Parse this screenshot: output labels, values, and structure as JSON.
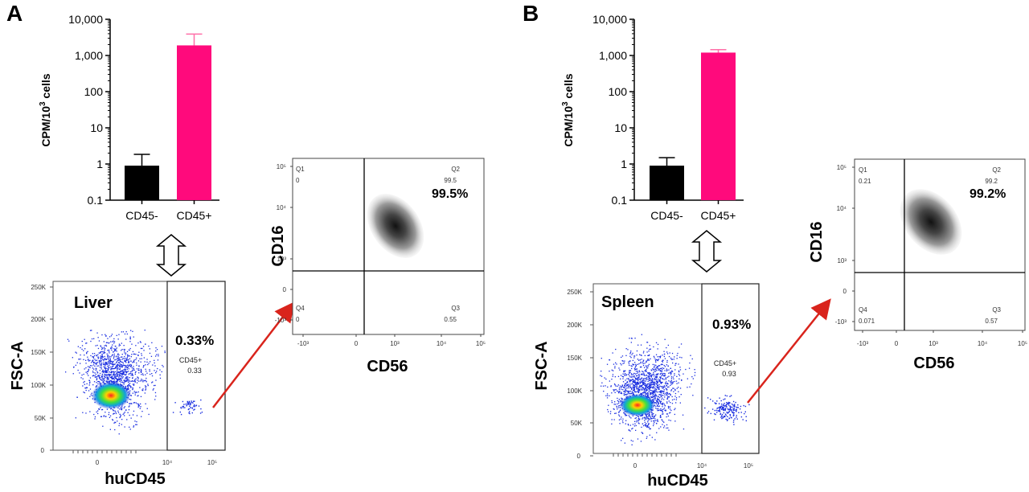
{
  "panels": [
    {
      "letter": "A",
      "bar_chart": {
        "type": "bar",
        "ylabel_main": "CPM/10",
        "ylabel_sup": "3",
        "ylabel_tail": " cells",
        "yscale": "log",
        "ylim": [
          0.1,
          10000
        ],
        "yticks": [
          "10,000",
          "1,000",
          "100",
          "10",
          "1",
          "0.1"
        ],
        "categories": [
          "CD45-",
          "CD45+"
        ],
        "values": [
          0.9,
          1900
        ],
        "errors_upper": [
          1.85,
          3900
        ],
        "colors": [
          "#000000",
          "#ff0a7c"
        ]
      },
      "arrow_icon": "double-headed-vertical-arrow-icon",
      "facs_gate": {
        "tissue": "Liver",
        "ylabel": "FSC-A",
        "xlabel": "huCD45",
        "yticks": [
          "250K",
          "200K",
          "150K",
          "100K",
          "50K",
          "0"
        ],
        "xticks": [
          "0",
          "10⁴",
          "10⁵"
        ],
        "gate_percent": "0.33%",
        "gate_name": "CD45+",
        "gate_value": "0.33"
      },
      "quadrant_plot": {
        "ylabel": "CD16",
        "xlabel": "CD56",
        "yticks": [
          "10⁵",
          "10⁴",
          "10³",
          "0",
          "-10³"
        ],
        "xticks": [
          "-10³",
          "0",
          "10³",
          "10⁴",
          "10⁵"
        ],
        "q1_label": "Q1",
        "q1_value": "0",
        "q2_label": "Q2",
        "q2_value": "99.5",
        "q3_label": "Q3",
        "q3_value": "0.55",
        "q4_label": "Q4",
        "q4_value": "0",
        "big_percent": "99.5%"
      }
    },
    {
      "letter": "B",
      "bar_chart": {
        "type": "bar",
        "ylabel_main": "CPM/10",
        "ylabel_sup": "3",
        "ylabel_tail": " cells",
        "yscale": "log",
        "ylim": [
          0.1,
          10000
        ],
        "yticks": [
          "10,000",
          "1,000",
          "100",
          "10",
          "1",
          "0.1"
        ],
        "categories": [
          "CD45-",
          "CD45+"
        ],
        "values": [
          0.9,
          1200
        ],
        "errors_upper": [
          1.5,
          1450
        ],
        "colors": [
          "#000000",
          "#ff0a7c"
        ]
      },
      "arrow_icon": "double-headed-vertical-arrow-icon",
      "facs_gate": {
        "tissue": "Spleen",
        "ylabel": "FSC-A",
        "xlabel": "huCD45",
        "yticks": [
          "250K",
          "200K",
          "150K",
          "100K",
          "50K",
          "0"
        ],
        "xticks": [
          "0",
          "10⁴",
          "10⁵"
        ],
        "gate_percent": "0.93%",
        "gate_name": "CD45+",
        "gate_value": "0.93"
      },
      "quadrant_plot": {
        "ylabel": "CD16",
        "xlabel": "CD56",
        "yticks": [
          "10⁵",
          "10⁴",
          "10³",
          "0",
          "-10³"
        ],
        "xticks": [
          "-10³",
          "0",
          "10³",
          "10⁴",
          "10⁵"
        ],
        "q1_label": "Q1",
        "q1_value": "0.21",
        "q2_label": "Q2",
        "q2_value": "99.2",
        "q3_label": "Q3",
        "q3_value": "0.57",
        "q4_label": "Q4",
        "q4_value": "0.071",
        "big_percent": "99.2%"
      }
    }
  ],
  "colors": {
    "arrow_red": "#d9241c",
    "bar_negative": "#000000",
    "bar_positive": "#ff0a7c",
    "errorbar_positive": "#ff6fa8"
  },
  "chart_data": [
    {
      "type": "bar",
      "panel": "A",
      "ylabel": "CPM/10³ cells",
      "yscale": "log",
      "ylim": [
        0.1,
        10000
      ],
      "categories": [
        "CD45-",
        "CD45+"
      ],
      "values": [
        0.9,
        1900
      ]
    },
    {
      "type": "bar",
      "panel": "B",
      "ylabel": "CPM/10³ cells",
      "yscale": "log",
      "ylim": [
        0.1,
        10000
      ],
      "categories": [
        "CD45-",
        "CD45+"
      ],
      "values": [
        0.9,
        1200
      ]
    }
  ]
}
